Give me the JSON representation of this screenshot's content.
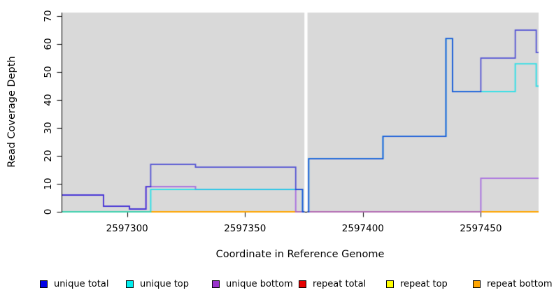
{
  "figure": {
    "background": "#ffffff",
    "plot_background": "#d9d9d9"
  },
  "chart_data": {
    "type": "line",
    "step": true,
    "title": "",
    "xlabel": "Coordinate in Reference Genome",
    "ylabel": "Read Coverage Depth",
    "xlim": [
      2597272.5,
      2597474.5
    ],
    "ylim": [
      0,
      71.3
    ],
    "x_ticks": [
      2597300,
      2597350,
      2597400,
      2597450
    ],
    "y_ticks": [
      0,
      10,
      20,
      30,
      40,
      50,
      60,
      70
    ],
    "grid": false,
    "legend_position": "bottom",
    "no_data_gap": [
      2597375.2,
      2597376.5
    ],
    "series": [
      {
        "name": "unique total",
        "swatch_color": "#0000e6",
        "line_color": "#1414d2",
        "line_alpha": 0.68,
        "line_width": 1.8,
        "segments": [
          [
            [
              2597272.5,
              6
            ],
            [
              2597290,
              2
            ],
            [
              2597301,
              1
            ],
            [
              2597308,
              9
            ],
            [
              2597310,
              17
            ],
            [
              2597329,
              16
            ],
            [
              2597371.5,
              8
            ],
            [
              2597374.4,
              0
            ],
            [
              2597375.2,
              0
            ]
          ],
          [
            [
              2597376.5,
              0
            ],
            [
              2597377,
              19
            ],
            [
              2597408.5,
              27
            ],
            [
              2597435.2,
              62
            ],
            [
              2597438,
              43
            ],
            [
              2597450,
              55
            ],
            [
              2597464.6,
              65
            ],
            [
              2597473.5,
              57
            ],
            [
              2597474.5,
              57
            ]
          ]
        ]
      },
      {
        "name": "unique top",
        "swatch_color": "#00eeee",
        "line_color": "#00e0ea",
        "line_alpha": 0.75,
        "line_width": 2,
        "segments": [
          [
            [
              2597272.5,
              0
            ],
            [
              2597310,
              8
            ],
            [
              2597374.4,
              0
            ],
            [
              2597375.2,
              0
            ]
          ],
          [
            [
              2597376.5,
              0
            ],
            [
              2597377,
              19
            ],
            [
              2597408.5,
              27
            ],
            [
              2597435.2,
              62
            ],
            [
              2597438,
              43
            ],
            [
              2597464.6,
              53
            ],
            [
              2597473.5,
              45
            ],
            [
              2597474.5,
              45
            ]
          ]
        ]
      },
      {
        "name": "unique bottom",
        "swatch_color": "#9932cc",
        "line_color": "#a05ee0",
        "line_alpha": 0.8,
        "line_width": 2,
        "segments": [
          [
            [
              2597272.5,
              6
            ],
            [
              2597290,
              2
            ],
            [
              2597301,
              1
            ],
            [
              2597308,
              9
            ],
            [
              2597329,
              8
            ],
            [
              2597371.5,
              0
            ],
            [
              2597375.2,
              0
            ]
          ],
          [
            [
              2597376.5,
              0
            ],
            [
              2597450,
              12
            ],
            [
              2597474.5,
              12
            ]
          ]
        ]
      },
      {
        "name": "repeat total",
        "swatch_color": "#e60000",
        "line_color": "#dd1133",
        "line_alpha": 0.9,
        "line_width": 1.6,
        "segments": [
          [
            [
              2597272.5,
              0
            ],
            [
              2597375.2,
              0
            ]
          ],
          [
            [
              2597376.5,
              0
            ],
            [
              2597474.5,
              0
            ]
          ]
        ]
      },
      {
        "name": "repeat top",
        "swatch_color": "#ffff00",
        "line_color": "#ffff00",
        "line_alpha": 1,
        "line_width": 1.6,
        "segments": [
          [
            [
              2597272.5,
              0
            ],
            [
              2597375.2,
              0
            ]
          ],
          [
            [
              2597376.5,
              0
            ],
            [
              2597474.5,
              0
            ]
          ]
        ]
      },
      {
        "name": "repeat bottom",
        "swatch_color": "#ffa500",
        "line_color": "#ffa500",
        "line_alpha": 1,
        "line_width": 1.8,
        "segments": [
          [
            [
              2597272.5,
              0
            ],
            [
              2597375.2,
              0
            ]
          ],
          [
            [
              2597376.5,
              0
            ],
            [
              2597474.5,
              0
            ]
          ]
        ]
      }
    ],
    "draw_order": [
      3,
      4,
      5,
      2,
      1,
      0
    ]
  }
}
